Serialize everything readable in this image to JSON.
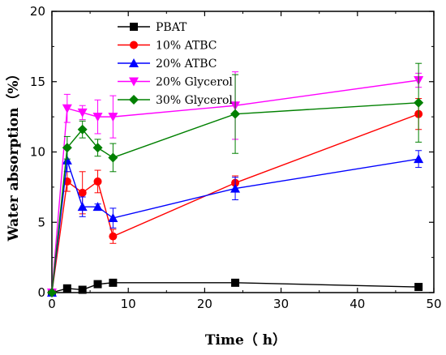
{
  "chart_data": {
    "type": "line",
    "title": "",
    "xlabel": "Time（ h）",
    "ylabel": "Water absorption（%）",
    "xlim": [
      0,
      50
    ],
    "ylim": [
      0,
      20
    ],
    "xticks": [
      "0",
      "10",
      "20",
      "30",
      "40",
      "50"
    ],
    "yticks": [
      "0",
      "5",
      "10",
      "15",
      "20"
    ],
    "grid": false,
    "legend_position": "top-center",
    "x": [
      0,
      2,
      4,
      6,
      8,
      24,
      48
    ],
    "series": [
      {
        "name": "PBAT",
        "color": "#000000",
        "marker": "square",
        "values": [
          0,
          0.3,
          0.2,
          0.6,
          0.7,
          0.7,
          0.4
        ],
        "errors": [
          0,
          0.1,
          0.1,
          0.1,
          0.1,
          0.1,
          0.1
        ]
      },
      {
        "name": "10% ATBC",
        "color": "#ff0000",
        "marker": "circle",
        "values": [
          0,
          7.9,
          7.1,
          7.9,
          4.0,
          7.8,
          12.7
        ],
        "errors": [
          0,
          0.7,
          1.5,
          0.8,
          0.5,
          0.5,
          1.1
        ]
      },
      {
        "name": "20% ATBC",
        "color": "#0000ff",
        "marker": "triangle-up",
        "values": [
          0,
          9.4,
          6.1,
          6.1,
          5.3,
          7.4,
          9.5
        ],
        "errors": [
          0,
          0.8,
          0.7,
          0.2,
          0.7,
          0.8,
          0.6
        ]
      },
      {
        "name": "20% Glycerol",
        "color": "#ff00ff",
        "marker": "triangle-down",
        "values": [
          0,
          13.1,
          12.8,
          12.5,
          12.5,
          13.3,
          15.1
        ],
        "errors": [
          0,
          1.0,
          0.5,
          1.2,
          1.5,
          2.4,
          0.5
        ]
      },
      {
        "name": "30% Glycerol",
        "color": "#008000",
        "marker": "diamond",
        "values": [
          0,
          10.3,
          11.6,
          10.3,
          9.6,
          12.7,
          13.5
        ],
        "errors": [
          0,
          0.8,
          0.6,
          0.6,
          1.0,
          2.8,
          2.8
        ]
      }
    ]
  }
}
